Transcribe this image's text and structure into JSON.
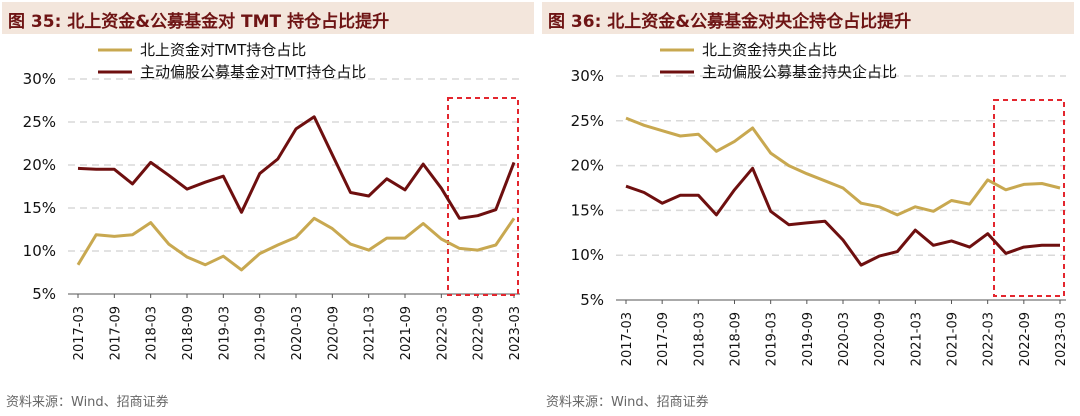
{
  "source": "资料来源：Wind、招商证券",
  "colors": {
    "gold": "#c8a850",
    "maroon": "#6e0f0f",
    "grid": "#d9d9d9",
    "highlight": "#e3262e",
    "title": "#6e1414"
  },
  "chart_data": [
    {
      "type": "line",
      "title": "图 35:  北上资金&公募基金对 TMT 持仓占比提升",
      "x_tick_labels": [
        "2017-03",
        "2017-09",
        "2018-03",
        "2018-09",
        "2019-03",
        "2019-09",
        "2020-03",
        "2020-09",
        "2021-03",
        "2021-09",
        "2022-03",
        "2022-09",
        "2023-03"
      ],
      "y_tick_labels": [
        "30%",
        "25%",
        "20%",
        "15%",
        "10%",
        "5%"
      ],
      "ylim": [
        5,
        30
      ],
      "grid": "horizontal dashed",
      "legend": "top-left",
      "highlight_box": {
        "from": "2022-06",
        "to": "2023-03"
      },
      "series": [
        {
          "name": "北上资金对TMT持仓占比",
          "color": "#c8a850",
          "values": [
            8.4,
            11.9,
            11.7,
            11.9,
            13.3,
            10.8,
            9.3,
            8.4,
            9.4,
            7.8,
            9.7,
            10.7,
            11.6,
            13.8,
            12.6,
            10.8,
            10.1,
            11.5,
            11.5,
            13.2,
            11.4,
            10.3,
            10.1,
            10.7,
            13.8
          ]
        },
        {
          "name": "主动偏股公募基金对TMT持仓占比",
          "color": "#6e0f0f",
          "values": [
            19.6,
            19.5,
            19.5,
            17.8,
            20.3,
            18.8,
            17.2,
            18.0,
            18.7,
            14.5,
            19.0,
            20.7,
            24.2,
            25.6,
            21.2,
            16.8,
            16.4,
            18.4,
            17.1,
            20.1,
            17.3,
            13.8,
            14.1,
            14.8,
            20.3
          ]
        }
      ]
    },
    {
      "type": "line",
      "title": "图 36:  北上资金&公募基金对央企持仓占比提升",
      "x_tick_labels": [
        "2017-03",
        "2017-09",
        "2018-03",
        "2018-09",
        "2019-03",
        "2019-09",
        "2020-03",
        "2020-09",
        "2021-03",
        "2021-09",
        "2022-03",
        "2022-09",
        "2023-03"
      ],
      "y_tick_labels": [
        "30%",
        "25%",
        "20%",
        "15%",
        "10%",
        "5%"
      ],
      "ylim": [
        5,
        30
      ],
      "grid": "horizontal dashed",
      "legend": "top-left",
      "highlight_box": {
        "from": "2022-06",
        "to": "2023-03"
      },
      "series": [
        {
          "name": "北上资金持央企占比",
          "color": "#c8a850",
          "values": [
            25.3,
            24.5,
            23.9,
            23.3,
            23.5,
            21.6,
            22.7,
            24.2,
            21.4,
            20.0,
            19.1,
            18.3,
            17.5,
            15.8,
            15.4,
            14.5,
            15.4,
            14.9,
            16.1,
            15.7,
            18.4,
            17.3,
            17.9,
            18.0,
            17.5
          ]
        },
        {
          "name": "主动偏股公募基金持央企占比",
          "color": "#6e0f0f",
          "values": [
            17.7,
            17.0,
            15.8,
            16.7,
            16.7,
            14.5,
            17.3,
            19.7,
            14.9,
            13.4,
            13.6,
            13.8,
            11.7,
            8.9,
            9.9,
            10.4,
            12.8,
            11.1,
            11.6,
            10.9,
            12.4,
            10.2,
            10.9,
            11.1,
            11.1
          ]
        }
      ]
    }
  ]
}
